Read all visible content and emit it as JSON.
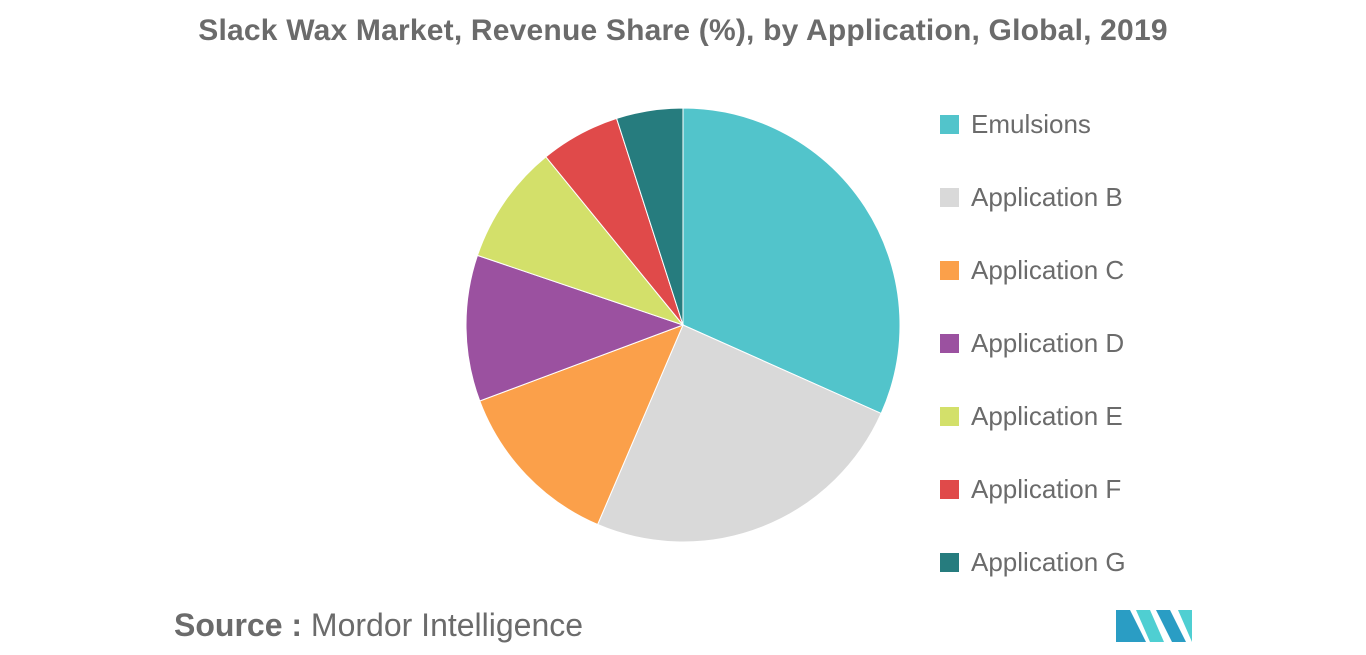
{
  "chart_data": {
    "type": "pie",
    "title": "Slack Wax Market, Revenue Share (%), by Application, Global, 2019",
    "slices": [
      {
        "label": "Emulsions",
        "value": 32,
        "color": "#52c4cb"
      },
      {
        "label": "Application B",
        "value": 25,
        "color": "#d9d9d9"
      },
      {
        "label": "Application C",
        "value": 13,
        "color": "#fba04a"
      },
      {
        "label": "Application D",
        "value": 11,
        "color": "#9b51a0"
      },
      {
        "label": "Application E",
        "value": 9,
        "color": "#d3e06a"
      },
      {
        "label": "Application F",
        "value": 6,
        "color": "#e04a4a"
      },
      {
        "label": "Application G",
        "value": 5,
        "color": "#267c7e"
      }
    ],
    "legend_position": "right"
  },
  "source": {
    "label": "Source :",
    "value": "Mordor Intelligence"
  },
  "logo": {
    "icon": "mordor-intelligence-logo-icon",
    "colors": [
      "#2a9dc4",
      "#4fcfd2",
      "#1b5f8c"
    ]
  }
}
